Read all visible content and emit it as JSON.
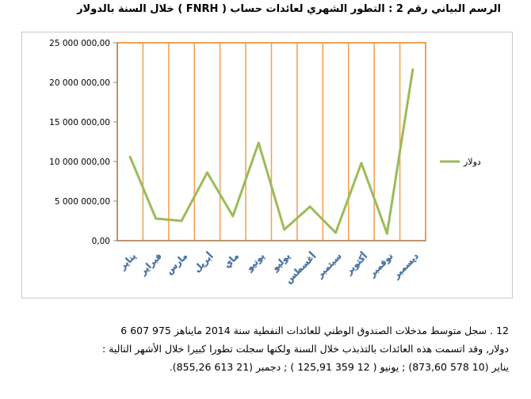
{
  "title": "الرسم البياني رقم 2 : التطور الشهري لعائدات حساب ( FNRH ) خلال السنة بالدولار",
  "chart_data": {
    "type": "line",
    "categories": [
      "يناير",
      "فبراير",
      "مارس",
      "أبريل",
      "ماي",
      "يونيو",
      "يوليو",
      "أغسطس",
      "سبتمبر",
      "أكتوبر",
      "نوفمبر",
      "ديسمبر"
    ],
    "series": [
      {
        "name": "دولار",
        "color": "#9bbb59",
        "values": [
          10578873.6,
          2800000,
          2500000,
          8600000,
          3100000,
          12359125.91,
          1400000,
          4300000,
          1000000,
          9800000,
          900000,
          21613855.26
        ]
      }
    ],
    "ylim": [
      0,
      25000000
    ],
    "yticks": [
      "0,00",
      "5 000 000,00",
      "10 000 000,00",
      "15 000 000,00",
      "20 000 000,00",
      "25 000 000,00"
    ],
    "grid": "vertical",
    "grid_color": "#f0a050",
    "legend": "right"
  },
  "paragraph": {
    "line1": "12 . سجل متوسط مدخلات الصندوق الوطني للعائدات النفطية سنة 2014 مايناهز 975 607 6",
    "line2": "دولار, وقد اتسمت هذه العائدات بالتذبذب خلال السنة ولكنها سجلت تطورا كبيرا خلال الأشهر التالية :",
    "line3": "يناير (10 578 873,60) ; يونيو ( 12 359 125,91 ) ; دجمبر (21 613 855,26)."
  }
}
